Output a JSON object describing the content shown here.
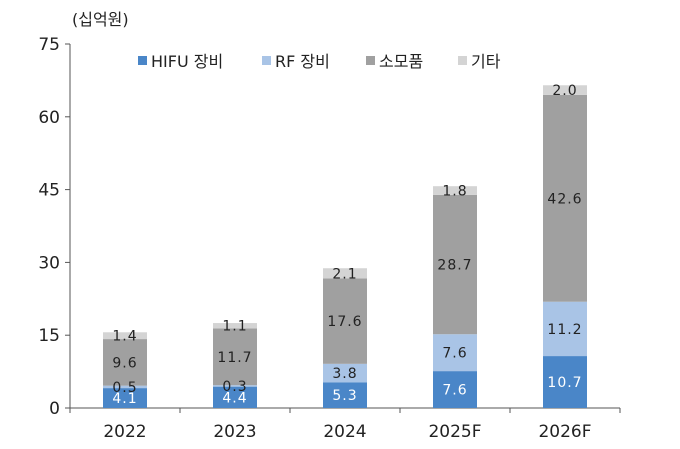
{
  "chart_data": {
    "type": "bar",
    "stacked": true,
    "unit_label": "(십억원)",
    "categories": [
      "2022",
      "2023",
      "2024",
      "2025F",
      "2026F"
    ],
    "series": [
      {
        "name": "HIFU 장비",
        "color": "#4a86c8",
        "label_color": "#ffffff",
        "values": [
          4.1,
          4.4,
          5.3,
          7.6,
          10.7
        ]
      },
      {
        "name": "RF 장비",
        "color": "#a9c4e6",
        "label_color": "#222222",
        "values": [
          0.5,
          0.3,
          3.8,
          7.6,
          11.2
        ]
      },
      {
        "name": "소모품",
        "color": "#a0a0a0",
        "label_color": "#222222",
        "values": [
          9.6,
          11.7,
          17.6,
          28.7,
          42.6
        ]
      },
      {
        "name": "기타",
        "color": "#d4d4d4",
        "label_color": "#222222",
        "values": [
          1.4,
          1.1,
          2.1,
          1.8,
          2.0
        ]
      }
    ],
    "data_labels": [
      [
        "4.1",
        "4.4",
        "5.3",
        "7.6",
        "10.7"
      ],
      [
        "0.5",
        "0.3",
        "3.8",
        "7.6",
        "11.2"
      ],
      [
        "9.6",
        "11.7",
        "17.6",
        "28.7",
        "42.6"
      ],
      [
        "1.4",
        "1.1",
        "2.1",
        "1.8",
        "2.0"
      ]
    ],
    "y_ticks": [
      "0",
      "15",
      "30",
      "45",
      "60",
      "75"
    ],
    "ylim": [
      0,
      75
    ],
    "grid": false,
    "legend_position": "top"
  }
}
